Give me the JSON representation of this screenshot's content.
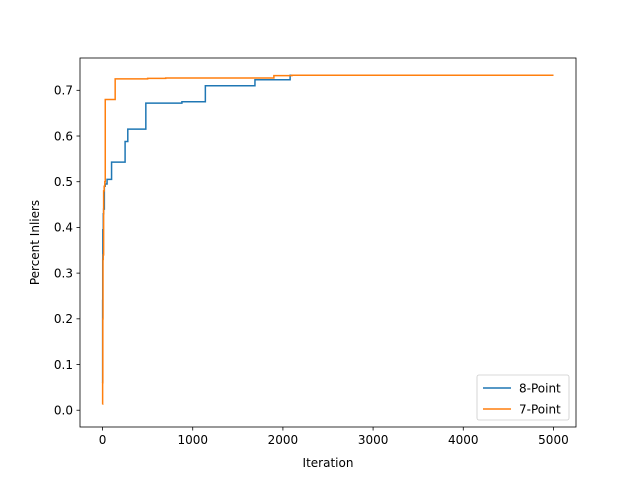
{
  "chart_data": {
    "type": "line",
    "title": "",
    "xlabel": "Iteration",
    "ylabel": "Percent Inliers",
    "xlim": [
      -250,
      5250
    ],
    "ylim": [
      -0.0367,
      0.7707
    ],
    "xticks": [
      0,
      1000,
      2000,
      3000,
      4000,
      5000
    ],
    "xtick_labels": [
      "0",
      "1000",
      "2000",
      "3000",
      "4000",
      "5000"
    ],
    "yticks": [
      0.0,
      0.1,
      0.2,
      0.3,
      0.4,
      0.5,
      0.6,
      0.7
    ],
    "ytick_labels": [
      "0.0",
      "0.1",
      "0.2",
      "0.3",
      "0.4",
      "0.5",
      "0.6",
      "0.7"
    ],
    "grid": false,
    "legend_position": "lower-right",
    "series": [
      {
        "name": "8-Point",
        "color": "#1f77b4",
        "step": true,
        "x": [
          0,
          1,
          2,
          3,
          5,
          8,
          12,
          20,
          30,
          50,
          100,
          140,
          250,
          280,
          480,
          880,
          1140,
          1690,
          2080,
          5000
        ],
        "y": [
          0.06,
          0.24,
          0.33,
          0.395,
          0.395,
          0.43,
          0.44,
          0.49,
          0.495,
          0.505,
          0.543,
          0.543,
          0.588,
          0.615,
          0.672,
          0.675,
          0.71,
          0.723,
          0.733,
          0.733
        ]
      },
      {
        "name": "7-Point",
        "color": "#ff7f0e",
        "step": true,
        "x": [
          0,
          1,
          3,
          5,
          8,
          12,
          18,
          25,
          30,
          140,
          500,
          700,
          1900,
          2100,
          5000
        ],
        "y": [
          0.013,
          0.06,
          0.2,
          0.33,
          0.34,
          0.48,
          0.49,
          0.5,
          0.68,
          0.725,
          0.726,
          0.727,
          0.732,
          0.733,
          0.733
        ]
      }
    ]
  }
}
